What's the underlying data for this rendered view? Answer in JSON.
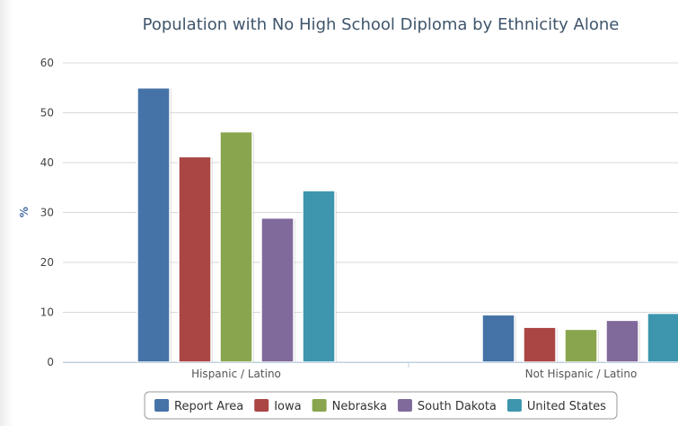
{
  "chart_data": {
    "type": "bar",
    "title": "Population with No High School Diploma by Ethnicity Alone",
    "ylabel": "%",
    "xlabel": "",
    "ylim": [
      0,
      60
    ],
    "yticks": [
      0,
      10,
      20,
      30,
      40,
      50,
      60
    ],
    "categories": [
      "Hispanic / Latino",
      "Not Hispanic / Latino"
    ],
    "series": [
      {
        "name": "Report Area",
        "color": "#4572a7",
        "values": [
          55.0,
          9.5
        ]
      },
      {
        "name": "Iowa",
        "color": "#aa4643",
        "values": [
          41.2,
          7.0
        ]
      },
      {
        "name": "Nebraska",
        "color": "#89a54e",
        "values": [
          46.2,
          6.6
        ]
      },
      {
        "name": "South Dakota",
        "color": "#80699b",
        "values": [
          28.9,
          8.4
        ]
      },
      {
        "name": "United States",
        "color": "#3d96ae",
        "values": [
          34.4,
          9.8
        ]
      }
    ],
    "grid": true,
    "legend_position": "bottom"
  }
}
